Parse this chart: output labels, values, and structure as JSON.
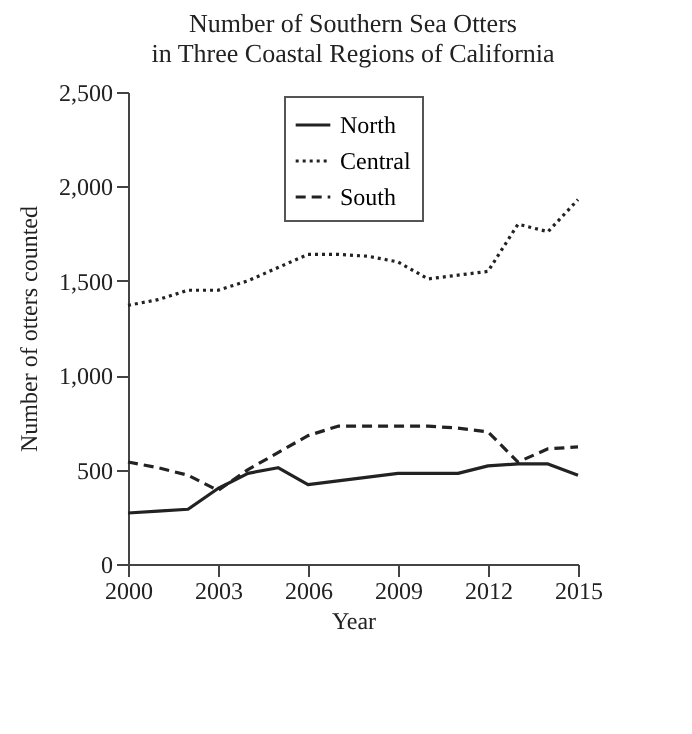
{
  "chart_data": {
    "type": "line",
    "title": [
      "Number of Southern Sea Otters",
      "in Three Coastal Regions of California"
    ],
    "xlabel": "Year",
    "ylabel": "Number of otters counted",
    "x": [
      2000,
      2001,
      2002,
      2003,
      2004,
      2005,
      2006,
      2007,
      2008,
      2009,
      2010,
      2011,
      2012,
      2013,
      2014,
      2015
    ],
    "series": [
      {
        "name": "North",
        "color": "#222222",
        "line_style": "solid",
        "values": [
          270,
          280,
          290,
          400,
          480,
          510,
          420,
          440,
          460,
          480,
          480,
          480,
          520,
          530,
          530,
          470
        ]
      },
      {
        "name": "Central",
        "color": "#222222",
        "line_style": "dotted",
        "values": [
          1370,
          1400,
          1450,
          1450,
          1500,
          1570,
          1640,
          1640,
          1630,
          1600,
          1510,
          1530,
          1550,
          1800,
          1760,
          1930
        ]
      },
      {
        "name": "South",
        "color": "#222222",
        "line_style": "dashed",
        "values": [
          540,
          510,
          470,
          390,
          500,
          590,
          680,
          730,
          730,
          730,
          730,
          720,
          700,
          540,
          610,
          620
        ]
      }
    ],
    "xlim": [
      2000,
      2015
    ],
    "xticks": [
      2000,
      2003,
      2006,
      2009,
      2012,
      2015
    ],
    "ylim": [
      0,
      2500
    ],
    "yticks": [
      0,
      {
        "value": 500,
        "label": "500"
      },
      {
        "value": 1000,
        "label": "1,000"
      },
      {
        "value": 1500,
        "label": "1,500"
      },
      {
        "value": 2000,
        "label": "2,000"
      },
      {
        "value": 2500,
        "label": "2,500"
      }
    ],
    "grid": false,
    "legend": "top",
    "marker": "none"
  }
}
